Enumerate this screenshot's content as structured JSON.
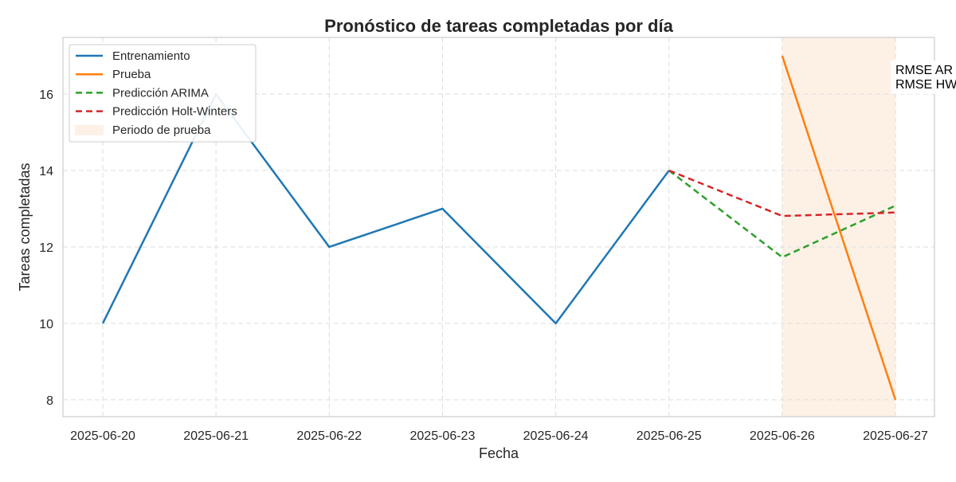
{
  "chart_data": {
    "type": "line",
    "title": "Pronóstico de tareas completadas por día",
    "xlabel": "Fecha",
    "ylabel": "Tareas completadas",
    "categories": [
      "2025-06-20",
      "2025-06-21",
      "2025-06-22",
      "2025-06-23",
      "2025-06-24",
      "2025-06-25",
      "2025-06-26",
      "2025-06-27"
    ],
    "ylim": [
      7.56,
      17.48
    ],
    "yticks": [
      8,
      10,
      12,
      14,
      16
    ],
    "grid": true,
    "legend_position": "top-left",
    "series": [
      {
        "name": "Entrenamiento",
        "color": "#1f77b4",
        "style": "solid",
        "x": [
          "2025-06-20",
          "2025-06-21",
          "2025-06-22",
          "2025-06-23",
          "2025-06-24",
          "2025-06-25"
        ],
        "values": [
          10,
          16,
          12,
          13,
          10,
          14
        ]
      },
      {
        "name": "Prueba",
        "color": "#ff7f0e",
        "style": "solid",
        "x": [
          "2025-06-26",
          "2025-06-27"
        ],
        "values": [
          17,
          8
        ]
      },
      {
        "name": "Predicción ARIMA",
        "color": "#2ca02c",
        "style": "dashed",
        "x": [
          "2025-06-25",
          "2025-06-26",
          "2025-06-27"
        ],
        "values": [
          14,
          11.73,
          13.08
        ]
      },
      {
        "name": "Predicción Holt-Winters",
        "color": "#d62728",
        "style": "dashed",
        "x": [
          "2025-06-25",
          "2025-06-26",
          "2025-06-27"
        ],
        "values": [
          14,
          12.81,
          12.9
        ]
      }
    ],
    "shaded_region": {
      "name": "Periodo de prueba",
      "color": "#fdf1e6",
      "x_start": "2025-06-26",
      "x_end": "2025-06-27"
    },
    "annotations": [
      "RMSE AR",
      "RMSE HW"
    ]
  }
}
